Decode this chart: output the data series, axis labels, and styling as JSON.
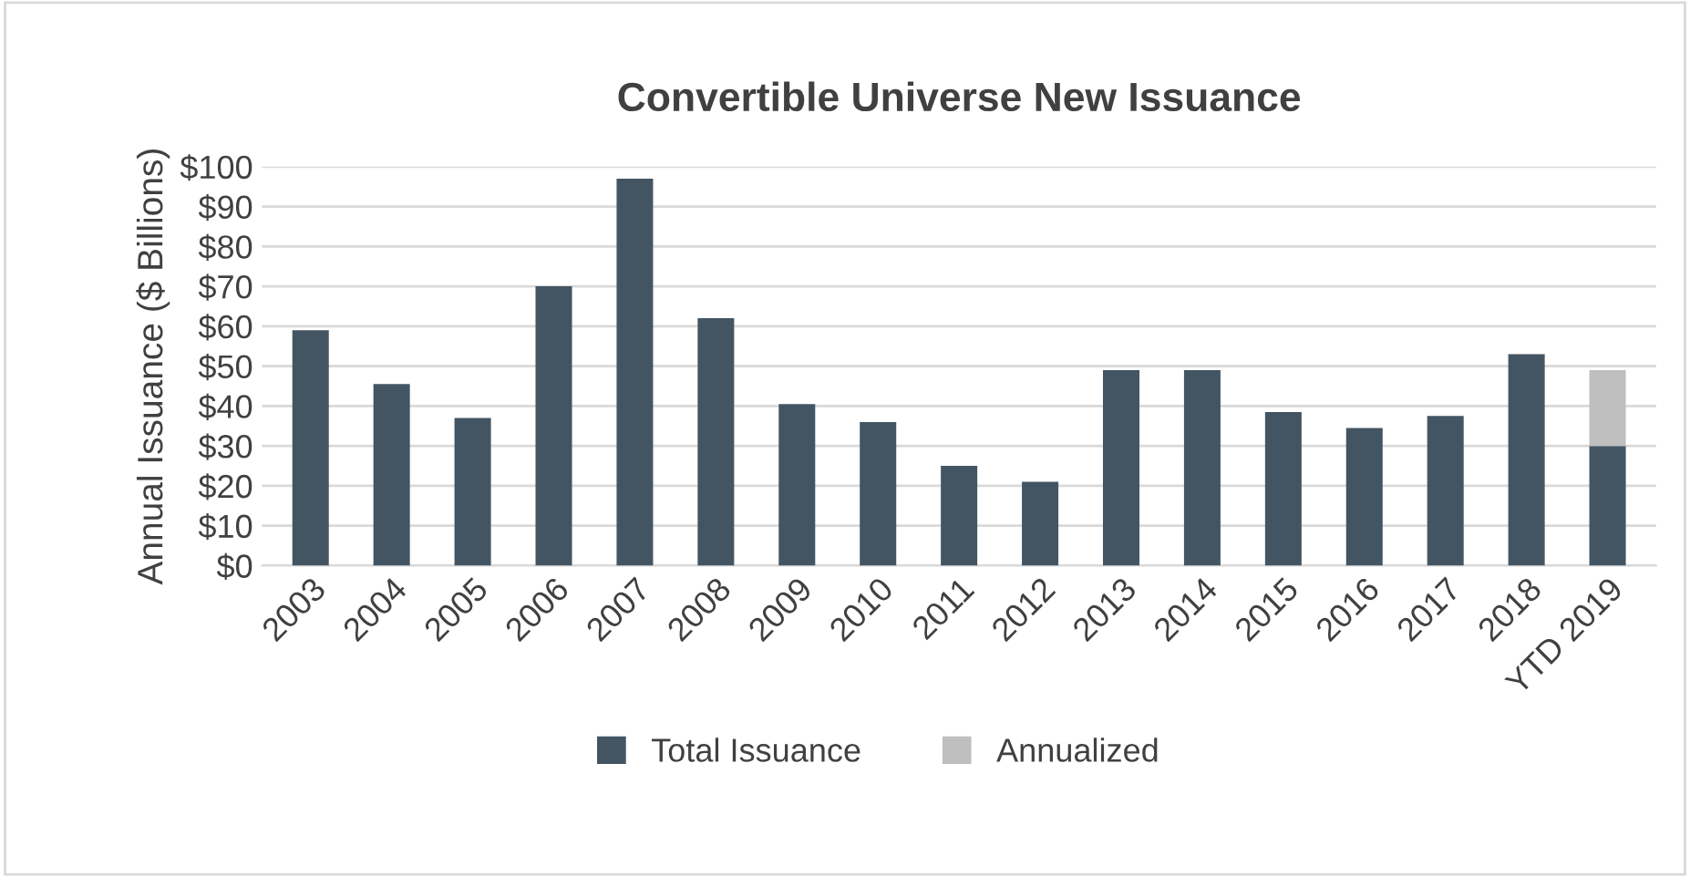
{
  "chart_data": {
    "type": "bar",
    "title": "Convertible Universe New Issuance",
    "ylabel": "Annual Issuance ($ Billions)",
    "categories": [
      "2003",
      "2004",
      "2005",
      "2006",
      "2007",
      "2008",
      "2009",
      "2010",
      "2011",
      "2012",
      "2013",
      "2014",
      "2015",
      "2016",
      "2017",
      "2018",
      "YTD 2019"
    ],
    "stacked": true,
    "series": [
      {
        "name": "Total Issuance",
        "color": "#435563",
        "values": [
          59,
          45.5,
          37,
          70,
          97,
          62,
          40.5,
          36,
          25,
          21,
          49,
          49,
          38.5,
          34.5,
          37.5,
          53,
          30
        ]
      },
      {
        "name": "Annualized",
        "color": "#bfbfbf",
        "values": [
          null,
          null,
          null,
          null,
          null,
          null,
          null,
          null,
          null,
          null,
          null,
          null,
          null,
          null,
          null,
          null,
          19
        ]
      }
    ],
    "ylim": [
      0,
      100
    ],
    "yticks": [
      {
        "value": 0,
        "label": "$0"
      },
      {
        "value": 10,
        "label": "$10"
      },
      {
        "value": 20,
        "label": "$20"
      },
      {
        "value": 30,
        "label": "$30"
      },
      {
        "value": 40,
        "label": "$40"
      },
      {
        "value": 50,
        "label": "$50"
      },
      {
        "value": 60,
        "label": "$60"
      },
      {
        "value": 70,
        "label": "$70"
      },
      {
        "value": 80,
        "label": "$80"
      },
      {
        "value": 90,
        "label": "$90"
      },
      {
        "value": 100,
        "label": "$100"
      }
    ],
    "grid": "y",
    "legend": "bottom"
  }
}
